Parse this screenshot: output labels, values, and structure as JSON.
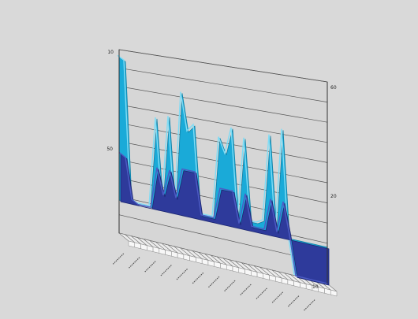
{
  "chart_data": {
    "type": "area",
    "title": "",
    "xlabel": "",
    "ylabel": "",
    "ylim": [
      10,
      60
    ],
    "grid": true,
    "legend": "none",
    "left_axis_ticks": [
      "10",
      "50"
    ],
    "right_axis_ticks": [
      "60",
      "20",
      "10"
    ],
    "categories_count": 34,
    "series": [
      {
        "color": "#1aaad8",
        "values": [
          58,
          57,
          20,
          19,
          19,
          19,
          43,
          21,
          44,
          20,
          51,
          41,
          43,
          20,
          20,
          20,
          41,
          37,
          44,
          21,
          42,
          21,
          21,
          22,
          44,
          20,
          46,
          20,
          10,
          10,
          10,
          10,
          10,
          10
        ]
      },
      {
        "color": "#2e3a9b",
        "values": [
          32,
          31,
          20,
          19,
          19,
          19,
          30,
          23,
          30,
          23,
          31,
          31,
          31,
          20,
          20,
          20,
          28,
          28,
          28,
          20,
          28,
          20,
          20,
          20,
          28,
          20,
          28,
          20,
          10,
          10,
          10,
          10,
          10,
          10
        ]
      }
    ]
  }
}
